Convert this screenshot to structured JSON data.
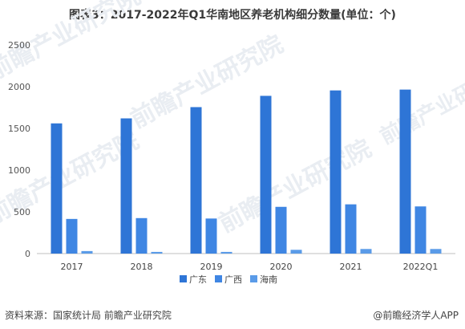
{
  "title": "图表3：2017-2022年Q1华南地区养老机构细分数量(单位：个)",
  "source": "资料来源：国家统计局 前瞻产业研究院",
  "credit": "@前瞻经济学人APP",
  "watermark": "前瞻产业研究院",
  "chart_data": {
    "type": "bar",
    "categories": [
      "2017",
      "2018",
      "2019",
      "2020",
      "2021",
      "2022Q1"
    ],
    "series": [
      {
        "name": "广东",
        "values": [
          1560,
          1620,
          1755,
          1890,
          1955,
          1965
        ],
        "color": "#2e75d6"
      },
      {
        "name": "广西",
        "values": [
          415,
          425,
          420,
          560,
          590,
          565
        ],
        "color": "#3f86e3"
      },
      {
        "name": "海南",
        "values": [
          30,
          20,
          20,
          45,
          55,
          55
        ],
        "color": "#5a9be8"
      }
    ],
    "ylim": [
      0,
      2500
    ],
    "yticks": [
      0,
      500,
      1000,
      1500,
      2000,
      2500
    ],
    "grid": false,
    "legend_position": "bottom-center",
    "xlabel": "",
    "ylabel": ""
  }
}
